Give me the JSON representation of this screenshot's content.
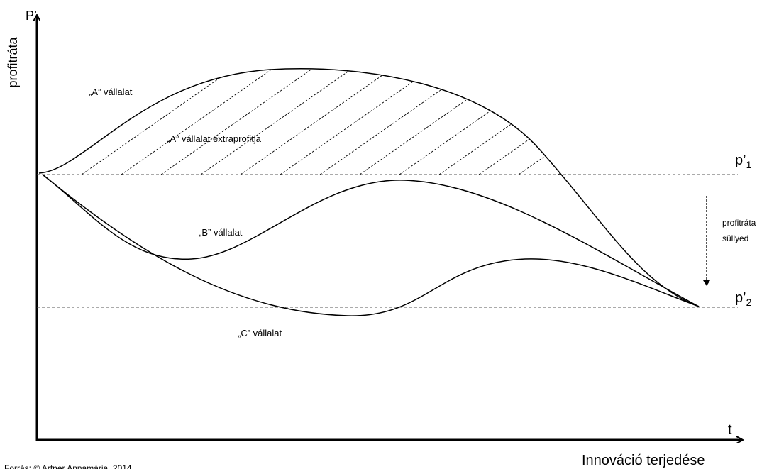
{
  "axes": {
    "y_symbol": "P’",
    "y_label": "profitráta",
    "x_symbol": "t",
    "x_label": "Innováció terjedése"
  },
  "levels": [
    {
      "text": "p’",
      "sub": "1"
    },
    {
      "text": "p’",
      "sub": "2"
    }
  ],
  "curves": {
    "a": "„A” vállalat",
    "a_extra": "„A” vállalat extraprofitja",
    "b": "„B” vállalat",
    "c": "„C” vállalat"
  },
  "note": [
    "profitráta",
    "süllyed"
  ],
  "source": "Forrás: © Artner Annamária, 2014"
}
